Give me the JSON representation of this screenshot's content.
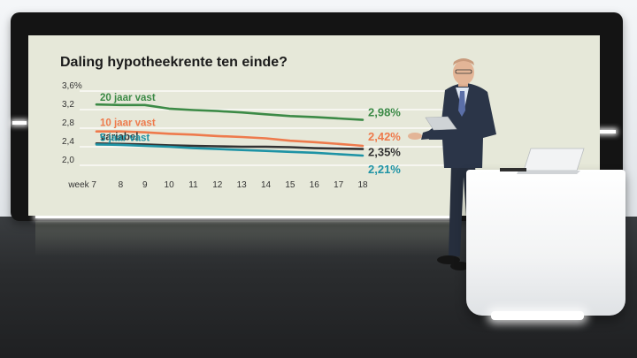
{
  "chart_data": {
    "type": "line",
    "title": "Daling hypotheekrente ten einde?",
    "x_labels": [
      "week 7",
      "8",
      "9",
      "10",
      "11",
      "12",
      "13",
      "14",
      "15",
      "16",
      "17",
      "18"
    ],
    "x": [
      7,
      8,
      9,
      10,
      11,
      12,
      13,
      14,
      15,
      16,
      17,
      18
    ],
    "y_ticks": [
      "3,6%",
      "3,2",
      "2,8",
      "2,4",
      "2,0"
    ],
    "y_tick_values": [
      3.6,
      3.2,
      2.8,
      2.4,
      2.0
    ],
    "ylim": [
      2.0,
      3.6
    ],
    "grid": true,
    "series": [
      {
        "name": "20 jaar vast",
        "end_label": "2,98%",
        "color": "#3c8a46",
        "values": [
          3.31,
          3.3,
          3.3,
          3.22,
          3.19,
          3.17,
          3.14,
          3.1,
          3.06,
          3.04,
          3.01,
          2.98
        ]
      },
      {
        "name": "10 jaar vast",
        "end_label": "2,42%",
        "color": "#ee7a4c",
        "values": [
          2.73,
          2.73,
          2.71,
          2.68,
          2.66,
          2.63,
          2.61,
          2.58,
          2.53,
          2.5,
          2.46,
          2.42
        ]
      },
      {
        "name": "variabel",
        "end_label": "2,35%",
        "color": "#333333",
        "values": [
          2.47,
          2.46,
          2.45,
          2.43,
          2.42,
          2.41,
          2.4,
          2.4,
          2.39,
          2.37,
          2.36,
          2.35
        ]
      },
      {
        "name": "5 jaar vast",
        "end_label": "2,21%",
        "color": "#1e93a5",
        "values": [
          2.45,
          2.44,
          2.42,
          2.4,
          2.37,
          2.35,
          2.33,
          2.31,
          2.29,
          2.27,
          2.24,
          2.21
        ]
      }
    ]
  },
  "colors": {
    "panel": "#e6e8d9",
    "suit": "#2b3548",
    "shirt": "#dfe7f2",
    "tie": "#5b6fa8"
  }
}
